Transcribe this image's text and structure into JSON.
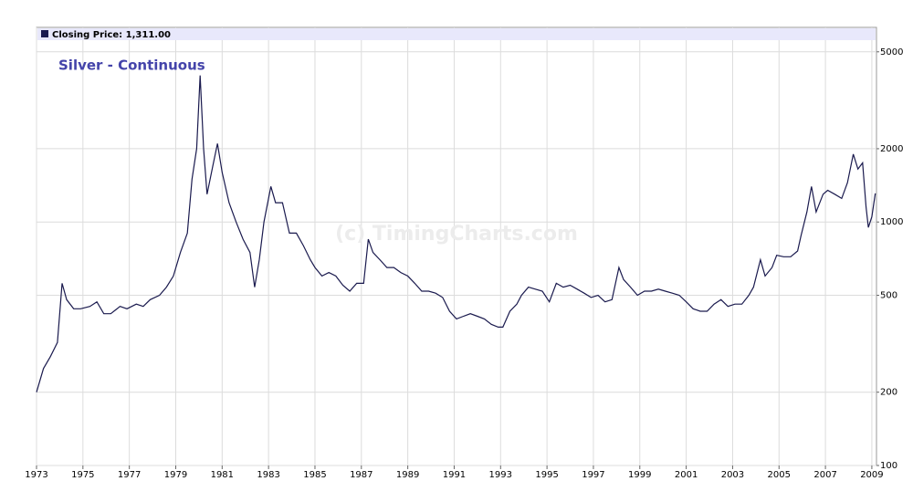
{
  "chart_data": {
    "type": "line",
    "title": "Silver - Continuous",
    "annotation": "(c) TimingCharts.com",
    "x": [
      1973.0,
      1973.3,
      1973.6,
      1973.9,
      1974.1,
      1974.3,
      1974.6,
      1974.9,
      1975.3,
      1975.6,
      1975.9,
      1976.2,
      1976.6,
      1976.9,
      1977.3,
      1977.6,
      1977.9,
      1978.3,
      1978.6,
      1978.9,
      1979.2,
      1979.5,
      1979.7,
      1979.9,
      1980.05,
      1980.2,
      1980.35,
      1980.6,
      1980.8,
      1981.0,
      1981.3,
      1981.6,
      1981.9,
      1982.2,
      1982.4,
      1982.6,
      1982.8,
      1983.1,
      1983.3,
      1983.6,
      1983.9,
      1984.2,
      1984.5,
      1984.8,
      1985.0,
      1985.3,
      1985.6,
      1985.9,
      1986.2,
      1986.5,
      1986.8,
      1987.1,
      1987.3,
      1987.5,
      1987.8,
      1988.1,
      1988.4,
      1988.7,
      1989.0,
      1989.3,
      1989.6,
      1989.9,
      1990.2,
      1990.5,
      1990.8,
      1991.1,
      1991.4,
      1991.7,
      1992.0,
      1992.3,
      1992.6,
      1992.9,
      1993.1,
      1993.4,
      1993.7,
      1993.9,
      1994.2,
      1994.5,
      1994.8,
      1995.1,
      1995.4,
      1995.7,
      1996.0,
      1996.3,
      1996.6,
      1996.9,
      1997.2,
      1997.5,
      1997.8,
      1998.1,
      1998.3,
      1998.6,
      1998.9,
      1999.2,
      1999.5,
      1999.8,
      2000.1,
      2000.4,
      2000.7,
      2001.0,
      2001.3,
      2001.6,
      2001.9,
      2002.2,
      2002.5,
      2002.8,
      2003.1,
      2003.4,
      2003.7,
      2003.9,
      2004.2,
      2004.4,
      2004.7,
      2004.9,
      2005.2,
      2005.5,
      2005.8,
      2005.95,
      2006.2,
      2006.4,
      2006.6,
      2006.9,
      2007.1,
      2007.4,
      2007.7,
      2007.95,
      2008.2,
      2008.4,
      2008.6,
      2008.75,
      2008.85,
      2009.0,
      2009.15
    ],
    "series": [
      {
        "name": "Closing Price: 1,311.00",
        "color": "#1a1a4e",
        "values": [
          200,
          250,
          280,
          320,
          560,
          480,
          440,
          440,
          450,
          470,
          420,
          420,
          450,
          440,
          460,
          450,
          480,
          500,
          540,
          600,
          750,
          900,
          1500,
          2000,
          4000,
          2000,
          1300,
          1700,
          2100,
          1600,
          1200,
          1000,
          850,
          750,
          540,
          700,
          1000,
          1400,
          1200,
          1200,
          900,
          900,
          800,
          700,
          650,
          600,
          620,
          600,
          550,
          520,
          560,
          560,
          850,
          750,
          700,
          650,
          650,
          620,
          600,
          560,
          520,
          520,
          510,
          490,
          430,
          400,
          410,
          420,
          410,
          400,
          380,
          370,
          370,
          430,
          460,
          500,
          540,
          530,
          520,
          470,
          560,
          540,
          550,
          530,
          510,
          490,
          500,
          470,
          480,
          650,
          580,
          540,
          500,
          520,
          520,
          530,
          520,
          510,
          500,
          470,
          440,
          430,
          430,
          460,
          480,
          450,
          460,
          460,
          500,
          540,
          700,
          600,
          650,
          730,
          720,
          720,
          760,
          880,
          1100,
          1400,
          1100,
          1300,
          1350,
          1300,
          1250,
          1450,
          1900,
          1650,
          1750,
          1150,
          950,
          1050,
          1311
        ]
      }
    ],
    "xlim": [
      1973,
      2009.2
    ],
    "xticks": [
      1973,
      1975,
      1977,
      1979,
      1981,
      1983,
      1985,
      1987,
      1989,
      1991,
      1993,
      1995,
      1997,
      1999,
      2001,
      2003,
      2005,
      2007,
      2009
    ],
    "ylim": [
      100,
      6300
    ],
    "yticks": [
      100,
      200,
      500,
      1000,
      2000,
      5000
    ],
    "log_y": true,
    "grid": true
  }
}
